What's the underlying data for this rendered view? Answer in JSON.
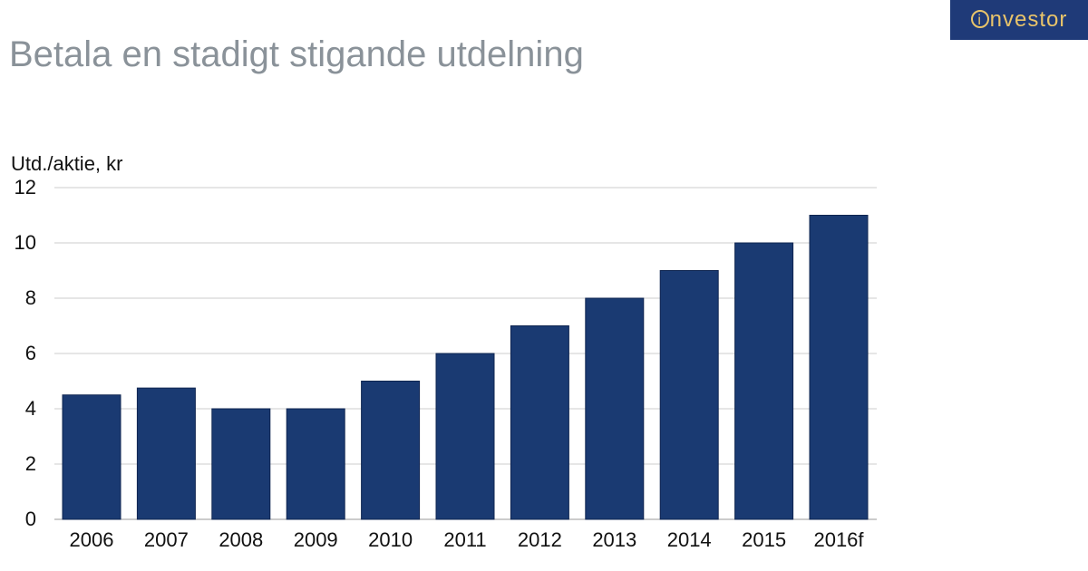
{
  "page": {
    "title": "Betala en stadigt stigande utdelning"
  },
  "logo": {
    "mark": "i",
    "text": "nvestor",
    "background": "#1f3a78",
    "color": "#e9c46a"
  },
  "chart_data": {
    "type": "bar",
    "title": "",
    "ylabel": "Utd./aktie, kr",
    "xlabel": "",
    "categories": [
      "2006",
      "2007",
      "2008",
      "2009",
      "2010",
      "2011",
      "2012",
      "2013",
      "2014",
      "2015",
      "2016f"
    ],
    "values": [
      4.5,
      4.75,
      4,
      4,
      5,
      6,
      7,
      8,
      9,
      10,
      11
    ],
    "ylim": [
      0,
      12
    ],
    "yticks": [
      0,
      2,
      4,
      6,
      8,
      10,
      12
    ],
    "grid": true,
    "legend": "none",
    "bar_color": "#1a3a72"
  }
}
